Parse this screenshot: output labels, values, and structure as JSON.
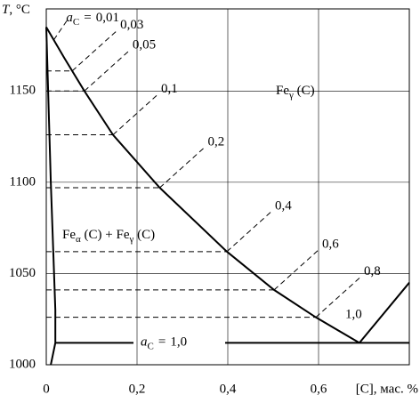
{
  "chart_data": {
    "type": "line",
    "ylabel": {
      "var": "T",
      "unit": ", °C"
    },
    "xlabel": "[C], мас. %",
    "xlim": [
      0,
      0.8
    ],
    "ylim": [
      1000,
      1195
    ],
    "xticks": [
      0,
      {
        "value": 0.2,
        "label": "0,2"
      },
      {
        "value": 0.4,
        "label": "0,4"
      },
      {
        "value": 0.6,
        "label": "0,6"
      }
    ],
    "yticks": [
      1000,
      1050,
      1100,
      1150
    ],
    "grid": true,
    "color": "#000000",
    "series": [
      {
        "x": [
          0,
          0.04,
          0.084,
          0.147,
          0.25,
          0.398,
          0.502,
          0.594,
          0.69
        ],
        "values": [
          1185,
          1168,
          1150,
          1126,
          1097,
          1062,
          1041,
          1026,
          1012
        ]
      },
      {
        "x": [
          0.69,
          0.8
        ],
        "values": [
          1012,
          1045
        ]
      },
      {
        "x": [
          0,
          0.01,
          0.02,
          0.02,
          0.01
        ],
        "values": [
          1185,
          1100,
          1030,
          1012,
          1000
        ]
      }
    ],
    "isolines": {
      "symbol": {
        "var": "a",
        "sub": "C",
        "sign": "="
      },
      "values": [
        0.01,
        0.03,
        0.05,
        0.1,
        0.2,
        0.4,
        0.6,
        0.8,
        1.0
      ],
      "value_labels": [
        "0,01",
        "0,03",
        "0,05",
        "0,1",
        "0,2",
        "0,4",
        "0,6",
        "0,8",
        "1,0"
      ],
      "temps": [
        1178,
        1161,
        1150,
        1126,
        1097,
        1062,
        1041,
        1026,
        1012
      ]
    },
    "regions": [
      {
        "parts": [
          "Fe",
          "γ",
          " (C)"
        ]
      },
      {
        "parts": [
          "Fe",
          "α",
          " (C) + Fe",
          "γ",
          " (C)"
        ]
      }
    ]
  }
}
